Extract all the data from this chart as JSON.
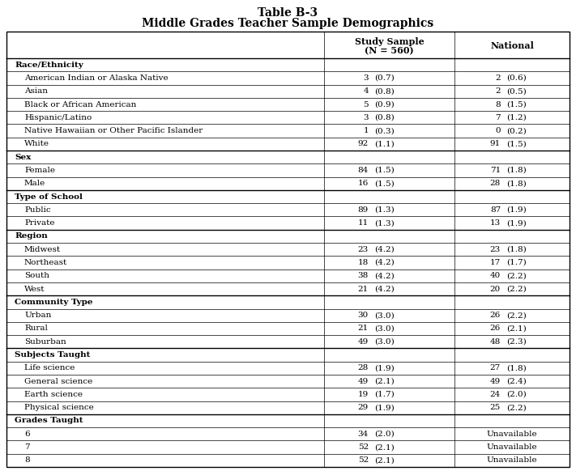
{
  "title_line1": "Table B-3",
  "title_line2": "Middle Grades Teacher Sample Demographics",
  "rows": [
    {
      "label": "Race/Ethnicity",
      "indent": 0,
      "bold": true,
      "study_num": "",
      "study_se": "",
      "nat_num": "",
      "nat_se": "",
      "nat_unavail": false
    },
    {
      "label": "American Indian or Alaska Native",
      "indent": 1,
      "bold": false,
      "study_num": "3",
      "study_se": "(0.7)",
      "nat_num": "2",
      "nat_se": "(0.6)",
      "nat_unavail": false
    },
    {
      "label": "Asian",
      "indent": 1,
      "bold": false,
      "study_num": "4",
      "study_se": "(0.8)",
      "nat_num": "2",
      "nat_se": "(0.5)",
      "nat_unavail": false
    },
    {
      "label": "Black or African American",
      "indent": 1,
      "bold": false,
      "study_num": "5",
      "study_se": "(0.9)",
      "nat_num": "8",
      "nat_se": "(1.5)",
      "nat_unavail": false
    },
    {
      "label": "Hispanic/Latino",
      "indent": 1,
      "bold": false,
      "study_num": "3",
      "study_se": "(0.8)",
      "nat_num": "7",
      "nat_se": "(1.2)",
      "nat_unavail": false
    },
    {
      "label": "Native Hawaiian or Other Pacific Islander",
      "indent": 1,
      "bold": false,
      "study_num": "1",
      "study_se": "(0.3)",
      "nat_num": "0",
      "nat_se": "(0.2)",
      "nat_unavail": false
    },
    {
      "label": "White",
      "indent": 1,
      "bold": false,
      "study_num": "92",
      "study_se": "(1.1)",
      "nat_num": "91",
      "nat_se": "(1.5)",
      "nat_unavail": false
    },
    {
      "label": "Sex",
      "indent": 0,
      "bold": true,
      "study_num": "",
      "study_se": "",
      "nat_num": "",
      "nat_se": "",
      "nat_unavail": false
    },
    {
      "label": "Female",
      "indent": 1,
      "bold": false,
      "study_num": "84",
      "study_se": "(1.5)",
      "nat_num": "71",
      "nat_se": "(1.8)",
      "nat_unavail": false
    },
    {
      "label": "Male",
      "indent": 1,
      "bold": false,
      "study_num": "16",
      "study_se": "(1.5)",
      "nat_num": "28",
      "nat_se": "(1.8)",
      "nat_unavail": false
    },
    {
      "label": "Type of School",
      "indent": 0,
      "bold": true,
      "study_num": "",
      "study_se": "",
      "nat_num": "",
      "nat_se": "",
      "nat_unavail": false
    },
    {
      "label": "Public",
      "indent": 1,
      "bold": false,
      "study_num": "89",
      "study_se": "(1.3)",
      "nat_num": "87",
      "nat_se": "(1.9)",
      "nat_unavail": false
    },
    {
      "label": "Private",
      "indent": 1,
      "bold": false,
      "study_num": "11",
      "study_se": "(1.3)",
      "nat_num": "13",
      "nat_se": "(1.9)",
      "nat_unavail": false
    },
    {
      "label": "Region",
      "indent": 0,
      "bold": true,
      "study_num": "",
      "study_se": "",
      "nat_num": "",
      "nat_se": "",
      "nat_unavail": false
    },
    {
      "label": "Midwest",
      "indent": 1,
      "bold": false,
      "study_num": "23",
      "study_se": "(4.2)",
      "nat_num": "23",
      "nat_se": "(1.8)",
      "nat_unavail": false
    },
    {
      "label": "Northeast",
      "indent": 1,
      "bold": false,
      "study_num": "18",
      "study_se": "(4.2)",
      "nat_num": "17",
      "nat_se": "(1.7)",
      "nat_unavail": false
    },
    {
      "label": "South",
      "indent": 1,
      "bold": false,
      "study_num": "38",
      "study_se": "(4.2)",
      "nat_num": "40",
      "nat_se": "(2.2)",
      "nat_unavail": false
    },
    {
      "label": "West",
      "indent": 1,
      "bold": false,
      "study_num": "21",
      "study_se": "(4.2)",
      "nat_num": "20",
      "nat_se": "(2.2)",
      "nat_unavail": false
    },
    {
      "label": "Community Type",
      "indent": 0,
      "bold": true,
      "study_num": "",
      "study_se": "",
      "nat_num": "",
      "nat_se": "",
      "nat_unavail": false
    },
    {
      "label": "Urban",
      "indent": 1,
      "bold": false,
      "study_num": "30",
      "study_se": "(3.0)",
      "nat_num": "26",
      "nat_se": "(2.2)",
      "nat_unavail": false
    },
    {
      "label": "Rural",
      "indent": 1,
      "bold": false,
      "study_num": "21",
      "study_se": "(3.0)",
      "nat_num": "26",
      "nat_se": "(2.1)",
      "nat_unavail": false
    },
    {
      "label": "Suburban",
      "indent": 1,
      "bold": false,
      "study_num": "49",
      "study_se": "(3.0)",
      "nat_num": "48",
      "nat_se": "(2.3)",
      "nat_unavail": false
    },
    {
      "label": "Subjects Taught",
      "indent": 0,
      "bold": true,
      "study_num": "",
      "study_se": "",
      "nat_num": "",
      "nat_se": "",
      "nat_unavail": false
    },
    {
      "label": "Life science",
      "indent": 1,
      "bold": false,
      "study_num": "28",
      "study_se": "(1.9)",
      "nat_num": "27",
      "nat_se": "(1.8)",
      "nat_unavail": false
    },
    {
      "label": "General science",
      "indent": 1,
      "bold": false,
      "study_num": "49",
      "study_se": "(2.1)",
      "nat_num": "49",
      "nat_se": "(2.4)",
      "nat_unavail": false
    },
    {
      "label": "Earth science",
      "indent": 1,
      "bold": false,
      "study_num": "19",
      "study_se": "(1.7)",
      "nat_num": "24",
      "nat_se": "(2.0)",
      "nat_unavail": false
    },
    {
      "label": "Physical science",
      "indent": 1,
      "bold": false,
      "study_num": "29",
      "study_se": "(1.9)",
      "nat_num": "25",
      "nat_se": "(2.2)",
      "nat_unavail": false
    },
    {
      "label": "Grades Taught",
      "indent": 0,
      "bold": true,
      "study_num": "",
      "study_se": "",
      "nat_num": "",
      "nat_se": "",
      "nat_unavail": false
    },
    {
      "label": "6",
      "indent": 1,
      "bold": false,
      "study_num": "34",
      "study_se": "(2.0)",
      "nat_num": "",
      "nat_se": "",
      "nat_unavail": true
    },
    {
      "label": "7",
      "indent": 1,
      "bold": false,
      "study_num": "52",
      "study_se": "(2.1)",
      "nat_num": "",
      "nat_se": "",
      "nat_unavail": true
    },
    {
      "label": "8",
      "indent": 1,
      "bold": false,
      "study_num": "52",
      "study_se": "(2.1)",
      "nat_num": "",
      "nat_se": "",
      "nat_unavail": true
    }
  ],
  "bg_color": "#ffffff",
  "border_color": "#000000",
  "text_color": "#000000",
  "font_size": 7.5,
  "header_font_size": 8.0,
  "title_font_size": 10.0
}
